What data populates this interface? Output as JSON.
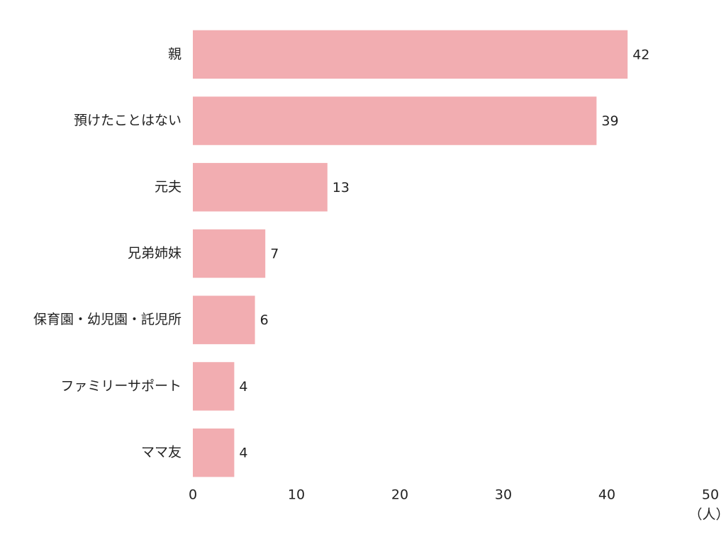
{
  "chart_data": {
    "type": "bar",
    "orientation": "horizontal",
    "categories": [
      "親",
      "預けたことはない",
      "元夫",
      "兄弟姉妹",
      "保育園・幼児園・託児所",
      "ファミリーサポート",
      "ママ友"
    ],
    "values": [
      42,
      39,
      13,
      7,
      6,
      4,
      4
    ],
    "color": "#f2adb1",
    "xlim": [
      0,
      50
    ],
    "xticks": [
      0,
      10,
      20,
      30,
      40,
      50
    ],
    "xlabel": "（人）",
    "grid": false
  }
}
